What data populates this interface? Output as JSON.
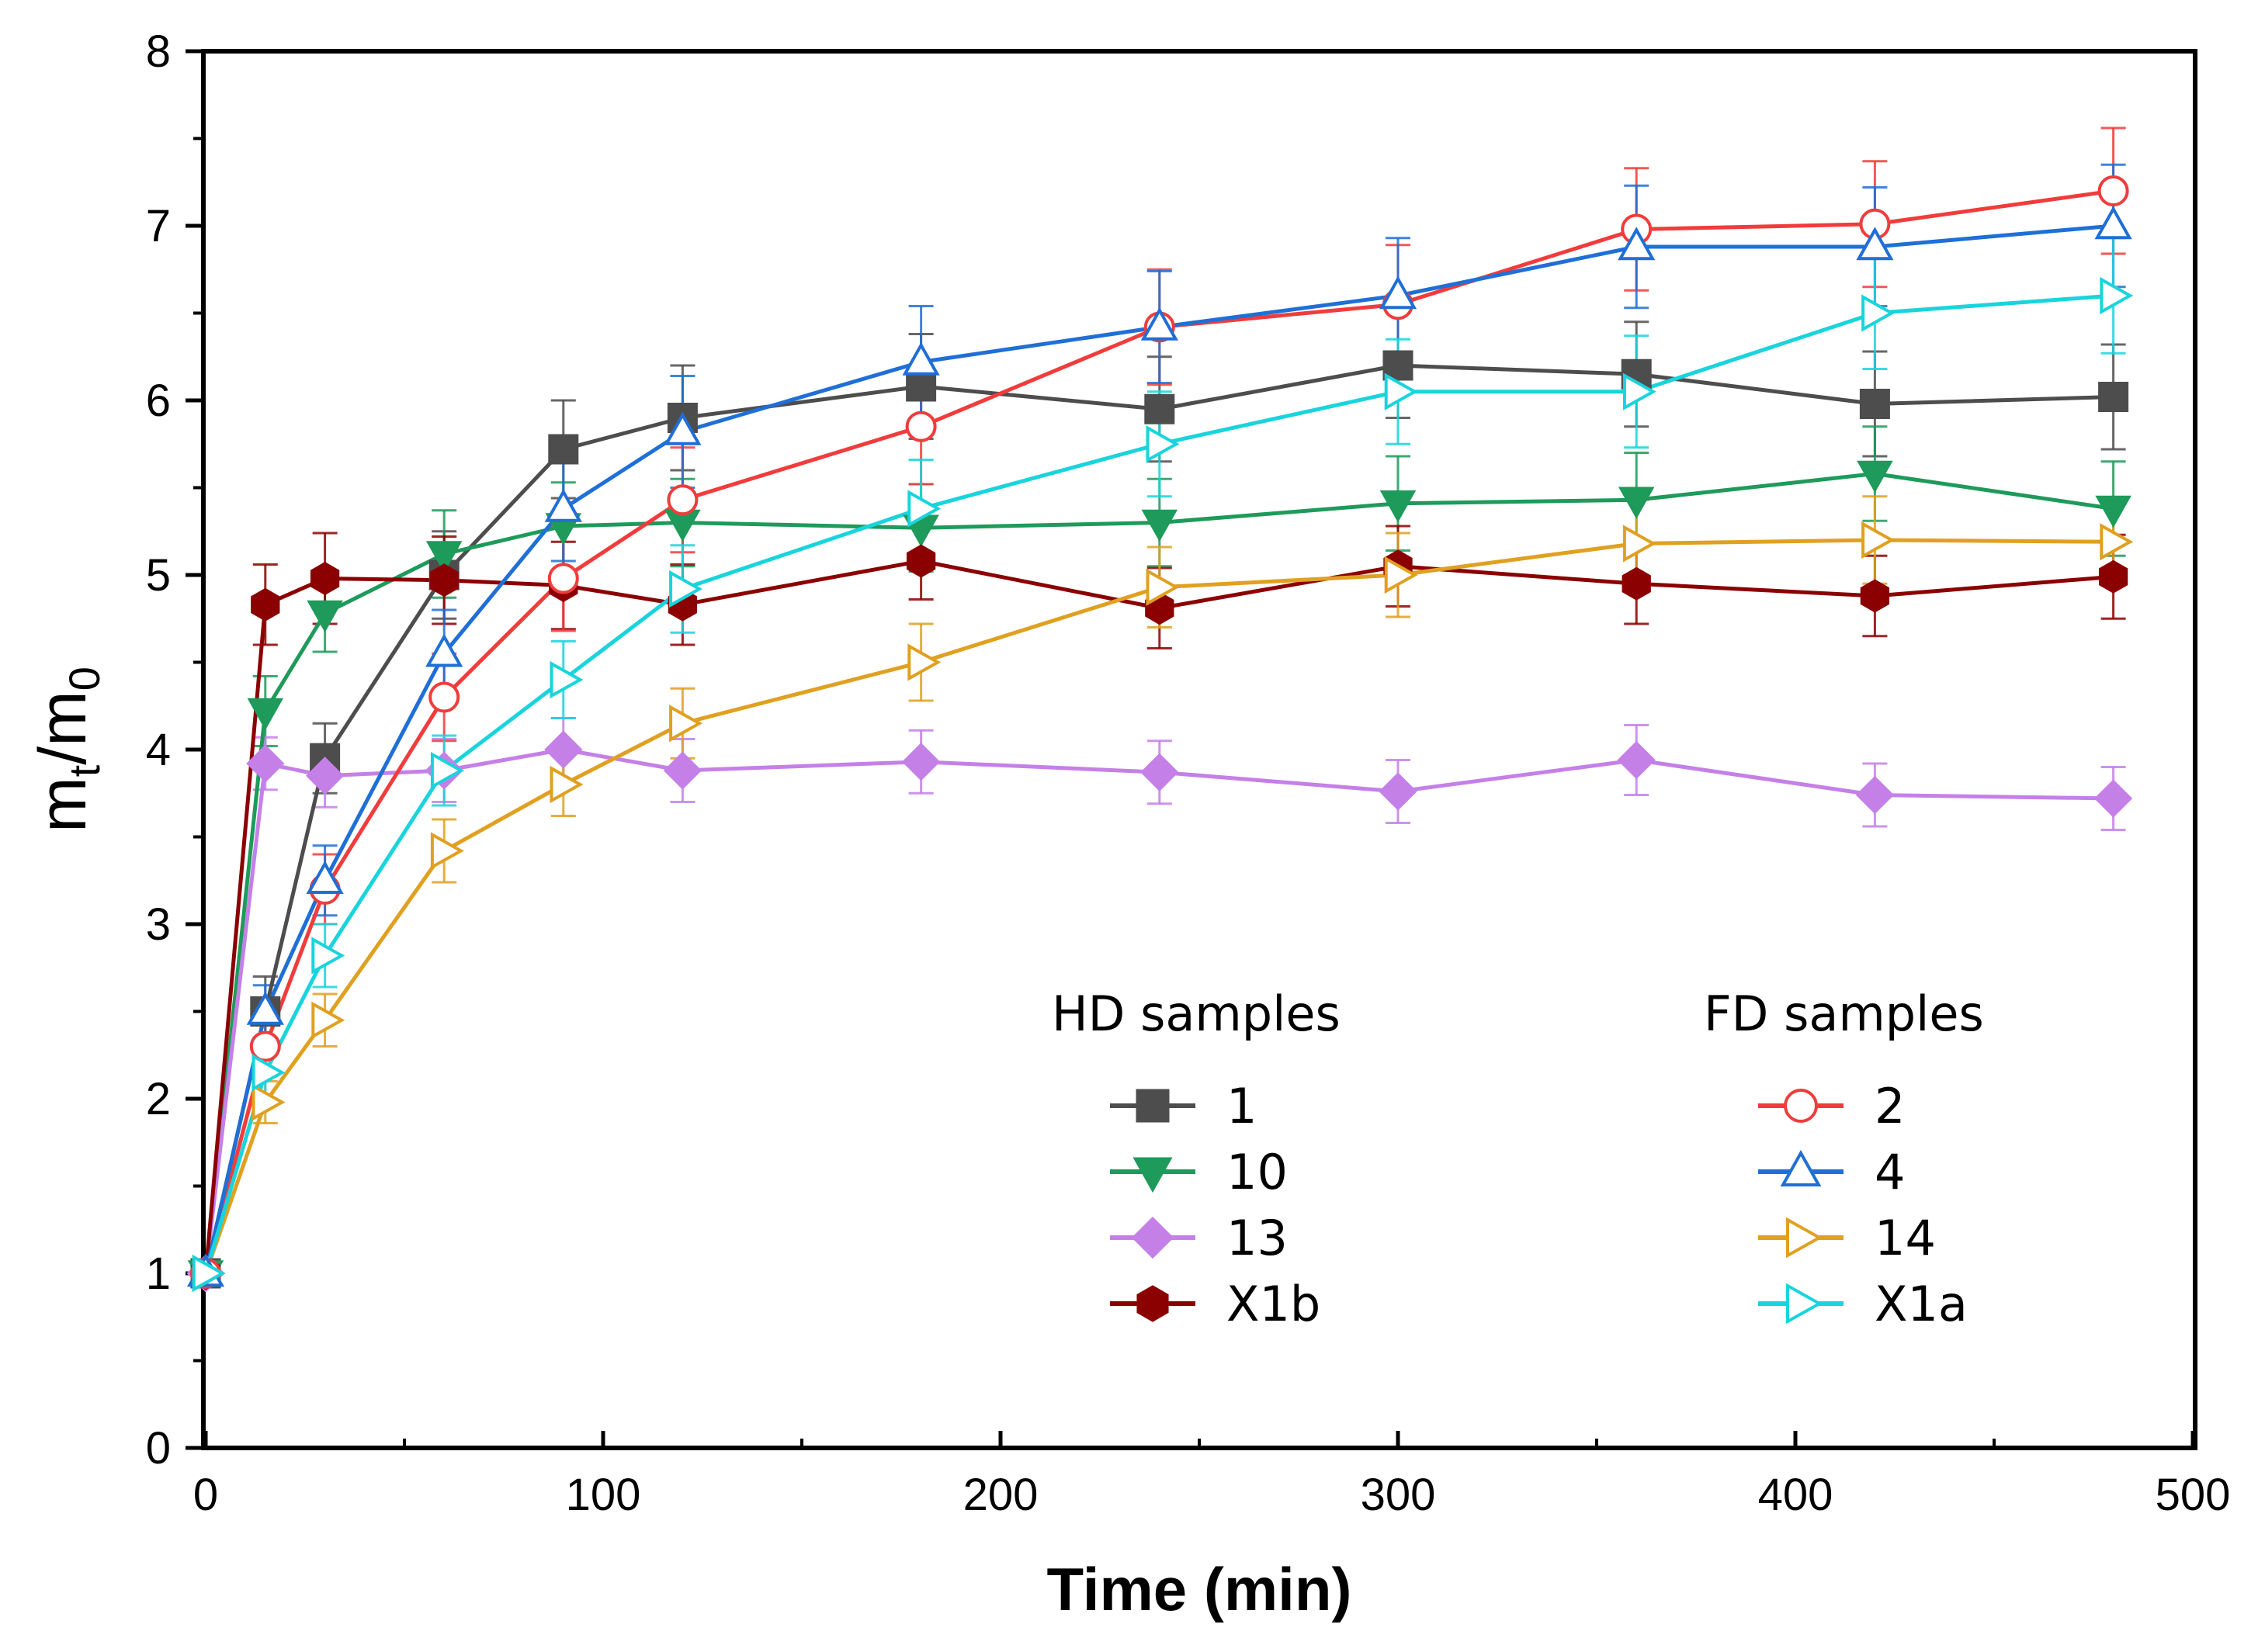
{
  "chart_data": {
    "type": "line",
    "xlabel": "Time (min)",
    "ylabel_main": "m",
    "ylabel_sub_t": "t",
    "ylabel_slash": "/m",
    "ylabel_sub_0": "0",
    "xlim": [
      0,
      500
    ],
    "ylim": [
      0,
      8
    ],
    "xticks": [
      "0",
      "100",
      "200",
      "300",
      "400",
      "500"
    ],
    "yticks": [
      "0",
      "1",
      "2",
      "3",
      "4",
      "5",
      "6",
      "7",
      "8"
    ],
    "x": [
      0,
      15,
      30,
      60,
      90,
      120,
      180,
      240,
      300,
      360,
      420,
      480
    ],
    "legend_groups": [
      {
        "title": "HD samples",
        "series": [
          "1",
          "10",
          "13",
          "X1b"
        ]
      },
      {
        "title": "FD samples",
        "series": [
          "2",
          "4",
          "14",
          "X1a"
        ]
      }
    ],
    "series": [
      {
        "name": "1",
        "group": "HD samples",
        "color": "#4d4d4d",
        "marker": "square",
        "filled": true,
        "values": [
          1.0,
          2.5,
          3.95,
          5.0,
          5.72,
          5.9,
          6.08,
          5.95,
          6.2,
          6.15,
          5.98,
          6.02
        ],
        "errors": [
          0.05,
          0.2,
          0.2,
          0.25,
          0.28,
          0.3,
          0.3,
          0.3,
          0.3,
          0.3,
          0.3,
          0.3
        ]
      },
      {
        "name": "10",
        "group": "HD samples",
        "color": "#1e9a5a",
        "marker": "triangle-down",
        "filled": true,
        "values": [
          1.0,
          4.22,
          4.78,
          5.12,
          5.28,
          5.3,
          5.27,
          5.3,
          5.41,
          5.43,
          5.58,
          5.38
        ],
        "errors": [
          0.05,
          0.2,
          0.22,
          0.25,
          0.25,
          0.25,
          0.25,
          0.25,
          0.27,
          0.27,
          0.27,
          0.27
        ]
      },
      {
        "name": "13",
        "group": "HD samples",
        "color": "#c580e8",
        "marker": "diamond",
        "filled": true,
        "values": [
          1.0,
          3.92,
          3.85,
          3.88,
          4.0,
          3.88,
          3.93,
          3.87,
          3.76,
          3.94,
          3.74,
          3.72
        ],
        "errors": [
          0.05,
          0.15,
          0.18,
          0.18,
          0.18,
          0.18,
          0.18,
          0.18,
          0.18,
          0.2,
          0.18,
          0.18
        ]
      },
      {
        "name": "X1b",
        "group": "HD samples",
        "color": "#8b0000",
        "marker": "hexagon",
        "filled": true,
        "values": [
          1.0,
          4.83,
          4.98,
          4.97,
          4.94,
          4.83,
          5.08,
          4.81,
          5.05,
          4.95,
          4.88,
          4.99
        ],
        "errors": [
          0.05,
          0.23,
          0.26,
          0.25,
          0.25,
          0.23,
          0.22,
          0.23,
          0.23,
          0.23,
          0.23,
          0.24
        ]
      },
      {
        "name": "2",
        "group": "FD samples",
        "color": "#f03c3c",
        "marker": "circle",
        "filled": false,
        "values": [
          1.0,
          2.3,
          3.2,
          4.3,
          4.98,
          5.43,
          5.85,
          6.42,
          6.55,
          6.98,
          7.01,
          7.2
        ],
        "errors": [
          0.05,
          0.15,
          0.2,
          0.25,
          0.3,
          0.3,
          0.33,
          0.33,
          0.34,
          0.35,
          0.36,
          0.36
        ]
      },
      {
        "name": "4",
        "group": "FD samples",
        "color": "#1f6fd6",
        "marker": "triangle-up",
        "filled": false,
        "values": [
          1.0,
          2.5,
          3.25,
          4.55,
          5.38,
          5.82,
          6.22,
          6.42,
          6.6,
          6.88,
          6.88,
          7.0
        ],
        "errors": [
          0.05,
          0.15,
          0.2,
          0.25,
          0.3,
          0.32,
          0.32,
          0.32,
          0.33,
          0.35,
          0.34,
          0.35
        ]
      },
      {
        "name": "14",
        "group": "FD samples",
        "color": "#e0a020",
        "marker": "triangle-right",
        "filled": false,
        "values": [
          1.0,
          1.98,
          2.45,
          3.42,
          3.8,
          4.15,
          4.5,
          4.93,
          5.0,
          5.18,
          5.2,
          5.19
        ],
        "errors": [
          0.05,
          0.12,
          0.15,
          0.18,
          0.18,
          0.2,
          0.22,
          0.23,
          0.24,
          0.25,
          0.25,
          0.25
        ]
      },
      {
        "name": "X1a",
        "group": "FD samples",
        "color": "#19d4dc",
        "marker": "triangle-right",
        "filled": false,
        "values": [
          1.0,
          2.15,
          2.82,
          3.88,
          4.4,
          4.92,
          5.38,
          5.75,
          6.05,
          6.05,
          6.5,
          6.6
        ],
        "errors": [
          0.05,
          0.15,
          0.18,
          0.2,
          0.22,
          0.25,
          0.28,
          0.3,
          0.3,
          0.32,
          0.32,
          0.33
        ]
      }
    ]
  }
}
